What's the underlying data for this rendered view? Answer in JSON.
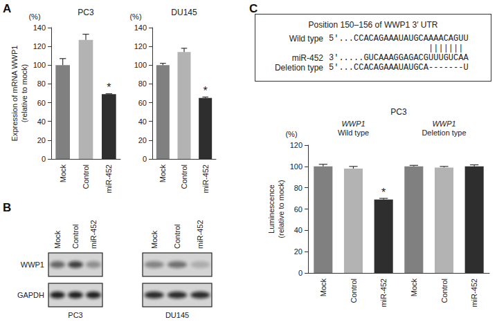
{
  "panel_labels": [
    "A",
    "B",
    "C"
  ],
  "chart_data": [
    {
      "type": "bar",
      "title": "PC3",
      "ylabel": "Expression of mRNA WWP1\n(relative to mock)",
      "y_unit": "(%)",
      "categories": [
        "Mock",
        "Control",
        "miR-452"
      ],
      "values": [
        100,
        127,
        69
      ],
      "errors": [
        7,
        6,
        0.5
      ],
      "colors": [
        "#808080",
        "#b3b3b3",
        "#2e2e2e"
      ],
      "ylim": [
        0,
        140
      ],
      "yticks": [
        0,
        20,
        40,
        60,
        80,
        100,
        120,
        140
      ],
      "grid": false,
      "annotations": [
        {
          "index": 2,
          "text": "*"
        }
      ]
    },
    {
      "type": "bar",
      "title": "DU145",
      "y_unit": "(%)",
      "categories": [
        "Mock",
        "Control",
        "miR-452"
      ],
      "values": [
        100,
        114,
        65
      ],
      "errors": [
        2,
        4,
        1
      ],
      "colors": [
        "#808080",
        "#b3b3b3",
        "#2e2e2e"
      ],
      "ylim": [
        0,
        140
      ],
      "yticks": [
        0,
        20,
        40,
        60,
        80,
        100,
        120,
        140
      ],
      "grid": false,
      "annotations": [
        {
          "index": 2,
          "text": "*"
        }
      ]
    },
    {
      "type": "bar",
      "title": "PC3",
      "ylabel": "Luminescence\n(relative to mock)",
      "y_unit": "(%)",
      "categories": [
        "Mock",
        "Control",
        "miR-452",
        "Mock",
        "Control",
        "miR-452"
      ],
      "values": [
        100,
        98,
        69,
        100,
        99,
        100
      ],
      "errors": [
        2,
        2,
        1,
        1,
        1,
        1.5
      ],
      "colors": [
        "#808080",
        "#b3b3b3",
        "#2e2e2e",
        "#808080",
        "#b3b3b3",
        "#2e2e2e"
      ],
      "ylim": [
        0,
        120
      ],
      "yticks": [
        0,
        20,
        40,
        60,
        80,
        100,
        120
      ],
      "grid": false,
      "groups": [
        {
          "label": "WWP1\nWild type",
          "size": 3
        },
        {
          "label": "WWP1\nDeletion type",
          "size": 3
        }
      ],
      "annotations": [
        {
          "index": 2,
          "text": "*"
        }
      ]
    }
  ],
  "blot": {
    "rows": [
      "WWP1",
      "GAPDH"
    ],
    "panels": [
      {
        "name": "PC3",
        "lanes": [
          "Mock",
          "Control",
          "miR-452"
        ],
        "band_intensity": [
          [
            0.55,
            0.75,
            0.35
          ],
          [
            0.9,
            0.9,
            0.9
          ]
        ]
      },
      {
        "name": "DU145",
        "lanes": [
          "Mock",
          "Control",
          "miR-452"
        ],
        "band_intensity": [
          [
            0.4,
            0.5,
            0.2
          ],
          [
            0.85,
            0.85,
            0.85
          ]
        ]
      }
    ]
  },
  "sequence": {
    "title": "Position 150–156 of WWP1 3′ UTR",
    "rows": [
      {
        "label": "Wild type",
        "text": "5′...CCACAGAAAUAUGCAAAACAGUU"
      },
      {
        "text": "                    |||||||"
      },
      {
        "label": "miR-452",
        "text": "3′.....GUCAAAGGAGACGUUUGUCAA"
      },
      {
        "label": "Deletion type",
        "text": "5′...CCACAGAAAUAUGCA-------U"
      }
    ]
  }
}
